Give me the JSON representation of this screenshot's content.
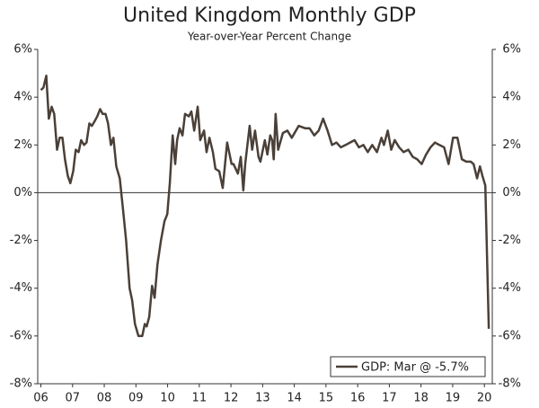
{
  "chart_data": {
    "type": "line",
    "title": "United Kingdom Monthly GDP",
    "subtitle": "Year-over-Year Percent Change",
    "x": [
      2006.0,
      2006.08,
      2006.17,
      2006.25,
      2006.34,
      2006.42,
      2006.51,
      2006.59,
      2006.68,
      2006.76,
      2006.85,
      2006.93,
      2007.02,
      2007.1,
      2007.19,
      2007.27,
      2007.36,
      2007.44,
      2007.53,
      2007.61,
      2007.7,
      2007.78,
      2007.87,
      2007.95,
      2008.04,
      2008.12,
      2008.21,
      2008.29,
      2008.38,
      2008.49,
      2008.6,
      2008.69,
      2008.8,
      2008.88,
      2008.97,
      2009.08,
      2009.2,
      2009.28,
      2009.34,
      2009.42,
      2009.51,
      2009.59,
      2009.68,
      2009.79,
      2009.9,
      2009.99,
      2010.07,
      2010.16,
      2010.24,
      2010.3,
      2010.38,
      2010.47,
      2010.55,
      2010.67,
      2010.75,
      2010.84,
      2010.95,
      2011.03,
      2011.15,
      2011.23,
      2011.32,
      2011.43,
      2011.51,
      2011.63,
      2011.74,
      2011.88,
      2012.02,
      2012.08,
      2012.22,
      2012.31,
      2012.39,
      2012.45,
      2012.59,
      2012.67,
      2012.76,
      2012.87,
      2012.93,
      2013.07,
      2013.15,
      2013.24,
      2013.3,
      2013.35,
      2013.41,
      2013.49,
      2013.64,
      2013.78,
      2013.92,
      2014.14,
      2014.34,
      2014.48,
      2014.63,
      2014.77,
      2014.91,
      2015.05,
      2015.19,
      2015.33,
      2015.47,
      2015.62,
      2015.76,
      2015.9,
      2016.04,
      2016.18,
      2016.32,
      2016.46,
      2016.61,
      2016.75,
      2016.83,
      2016.95,
      2017.06,
      2017.17,
      2017.31,
      2017.45,
      2017.6,
      2017.74,
      2017.88,
      2018.02,
      2018.16,
      2018.3,
      2018.44,
      2018.58,
      2018.73,
      2018.87,
      2019.01,
      2019.15,
      2019.29,
      2019.43,
      2019.57,
      2019.66,
      2019.77,
      2019.86,
      2019.94,
      2020.03,
      2020.14
    ],
    "series": [
      {
        "name": "GDP: Mar @ -5.7%",
        "color": "#4a4038",
        "values": [
          4.3,
          4.4,
          4.9,
          3.1,
          3.6,
          3.3,
          1.8,
          2.3,
          2.3,
          1.4,
          0.7,
          0.4,
          0.9,
          1.8,
          1.7,
          2.2,
          2.0,
          2.1,
          2.9,
          2.8,
          3.0,
          3.2,
          3.5,
          3.3,
          3.3,
          2.9,
          2.0,
          2.3,
          1.1,
          0.6,
          -0.8,
          -2.0,
          -4.0,
          -4.5,
          -5.5,
          -6.0,
          -6.0,
          -5.5,
          -5.6,
          -5.2,
          -3.9,
          -4.4,
          -3.0,
          -2.0,
          -1.2,
          -0.9,
          0.4,
          2.4,
          1.2,
          2.2,
          2.7,
          2.4,
          3.3,
          3.2,
          3.4,
          2.6,
          3.6,
          2.2,
          2.6,
          1.7,
          2.3,
          1.7,
          1.0,
          0.9,
          0.2,
          2.1,
          1.2,
          1.2,
          0.8,
          1.5,
          0.1,
          1.2,
          2.8,
          1.8,
          2.6,
          1.5,
          1.3,
          2.2,
          1.6,
          2.4,
          2.2,
          1.4,
          3.3,
          1.8,
          2.5,
          2.6,
          2.3,
          2.8,
          2.7,
          2.7,
          2.4,
          2.6,
          3.1,
          2.6,
          2.0,
          2.1,
          1.9,
          2.0,
          2.1,
          2.2,
          1.9,
          2.0,
          1.7,
          2.0,
          1.7,
          2.3,
          2.0,
          2.6,
          1.8,
          2.2,
          1.9,
          1.7,
          1.8,
          1.5,
          1.4,
          1.2,
          1.6,
          1.9,
          2.1,
          2.0,
          1.9,
          1.2,
          2.3,
          2.3,
          1.4,
          1.3,
          1.3,
          1.2,
          0.6,
          1.1,
          0.7,
          0.3,
          -5.7
        ]
      }
    ],
    "xlim": [
      2005.9,
      2020.25
    ],
    "xticks": [
      {
        "value": 2006,
        "label": "06"
      },
      {
        "value": 2007,
        "label": "07"
      },
      {
        "value": 2008,
        "label": "08"
      },
      {
        "value": 2009,
        "label": "09"
      },
      {
        "value": 2010,
        "label": "10"
      },
      {
        "value": 2011,
        "label": "11"
      },
      {
        "value": 2012,
        "label": "12"
      },
      {
        "value": 2013,
        "label": "13"
      },
      {
        "value": 2014,
        "label": "14"
      },
      {
        "value": 2015,
        "label": "15"
      },
      {
        "value": 2016,
        "label": "16"
      },
      {
        "value": 2017,
        "label": "17"
      },
      {
        "value": 2018,
        "label": "18"
      },
      {
        "value": 2019,
        "label": "19"
      },
      {
        "value": 2020,
        "label": "20"
      }
    ],
    "ylim": [
      -8,
      6
    ],
    "yticks": [
      {
        "value": 6,
        "label": "6%"
      },
      {
        "value": 4,
        "label": "4%"
      },
      {
        "value": 2,
        "label": "2%"
      },
      {
        "value": 0,
        "label": "0%"
      },
      {
        "value": -2,
        "label": "-2%"
      },
      {
        "value": -4,
        "label": "-4%"
      },
      {
        "value": -6,
        "label": "-6%"
      },
      {
        "value": -8,
        "label": "-8%"
      }
    ],
    "y2lim": [
      -8,
      6
    ],
    "y2ticks": [
      {
        "value": 6,
        "label": "6%"
      },
      {
        "value": 4,
        "label": "4%"
      },
      {
        "value": 2,
        "label": "2%"
      },
      {
        "value": 0,
        "label": "0%"
      },
      {
        "value": -2,
        "label": "-2%"
      },
      {
        "value": -4,
        "label": "-4%"
      },
      {
        "value": -6,
        "label": "-6%"
      },
      {
        "value": -8,
        "label": "-8%"
      }
    ],
    "legend": "lower right",
    "grid": false
  }
}
